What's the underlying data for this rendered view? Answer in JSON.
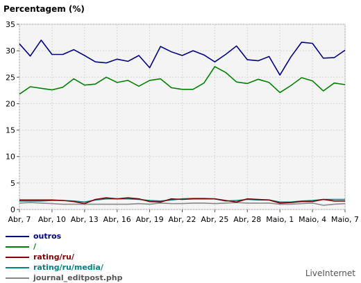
{
  "chart_data": {
    "type": "line",
    "title": "Percentagem (%)",
    "xlabel": "",
    "ylabel": "",
    "ylim": [
      0,
      35
    ],
    "yticks": [
      0,
      5,
      10,
      15,
      20,
      25,
      30,
      35
    ],
    "xtick_labels": [
      "Abr, 7",
      "Abr, 10",
      "Abr, 13",
      "Abr, 16",
      "Abr, 19",
      "Abr, 22",
      "Abr, 25",
      "Abr, 28",
      "Maio, 1",
      "Maio, 4",
      "Maio, 7"
    ],
    "x": [
      "Abr, 7",
      "Abr, 8",
      "Abr, 9",
      "Abr, 10",
      "Abr, 11",
      "Abr, 12",
      "Abr, 13",
      "Abr, 14",
      "Abr, 15",
      "Abr, 16",
      "Abr, 17",
      "Abr, 18",
      "Abr, 19",
      "Abr, 20",
      "Abr, 21",
      "Abr, 22",
      "Abr, 23",
      "Abr, 24",
      "Abr, 25",
      "Abr, 26",
      "Abr, 27",
      "Abr, 28",
      "Abr, 29",
      "Abr, 30",
      "Maio, 1",
      "Maio, 2",
      "Maio, 3",
      "Maio, 4",
      "Maio, 5",
      "Maio, 6",
      "Maio, 7"
    ],
    "grid": true,
    "plot_background": "#f4f4f4",
    "legend_position": "bottom-left",
    "series": [
      {
        "name": "outros",
        "color": "#000080",
        "values": [
          31.3,
          29.0,
          32.0,
          29.3,
          29.3,
          30.2,
          29.1,
          27.9,
          27.7,
          28.4,
          28.0,
          29.1,
          26.8,
          30.8,
          29.8,
          29.1,
          30.0,
          29.2,
          27.9,
          29.3,
          30.9,
          28.3,
          28.1,
          28.9,
          25.4,
          28.8,
          31.6,
          31.4,
          28.6,
          28.7,
          30.1
        ]
      },
      {
        "name": "/",
        "color": "#008000",
        "values": [
          21.8,
          23.2,
          22.9,
          22.6,
          23.1,
          24.7,
          23.5,
          23.7,
          25.0,
          24.0,
          24.4,
          23.3,
          24.4,
          24.7,
          23.0,
          22.7,
          22.7,
          23.9,
          27.0,
          25.9,
          24.1,
          23.8,
          24.6,
          24.0,
          22.1,
          23.4,
          24.9,
          24.3,
          22.4,
          23.9,
          23.6
        ]
      },
      {
        "name": "rating/ru/",
        "color": "#800000",
        "values": [
          1.8,
          1.8,
          1.8,
          1.8,
          1.7,
          1.5,
          1.1,
          1.9,
          2.2,
          2.0,
          2.2,
          2.0,
          1.5,
          1.4,
          2.0,
          1.9,
          2.0,
          2.0,
          2.0,
          1.7,
          1.4,
          2.0,
          1.9,
          1.8,
          1.2,
          1.3,
          1.5,
          1.5,
          1.9,
          1.6,
          1.6
        ]
      },
      {
        "name": "rating/ru/media/",
        "color": "#008080",
        "values": [
          1.6,
          1.6,
          1.6,
          1.7,
          1.7,
          1.6,
          1.4,
          1.8,
          2.0,
          2.0,
          2.0,
          1.9,
          1.7,
          1.6,
          1.8,
          2.0,
          2.1,
          2.1,
          2.0,
          1.6,
          1.7,
          1.9,
          1.8,
          1.8,
          1.4,
          1.4,
          1.6,
          1.7,
          1.9,
          1.9,
          1.9
        ]
      },
      {
        "name": "journal_editpost.php",
        "color": "#888888",
        "values": [
          1.2,
          1.3,
          1.2,
          1.1,
          1.0,
          1.0,
          1.0,
          1.0,
          1.0,
          1.0,
          1.0,
          1.1,
          1.0,
          1.2,
          1.1,
          1.1,
          1.2,
          1.2,
          1.1,
          1.2,
          1.3,
          1.2,
          1.2,
          1.2,
          1.0,
          1.0,
          1.1,
          1.2,
          0.8,
          1.0,
          1.1
        ]
      }
    ]
  },
  "footer": {
    "source": "LiveInternet"
  }
}
